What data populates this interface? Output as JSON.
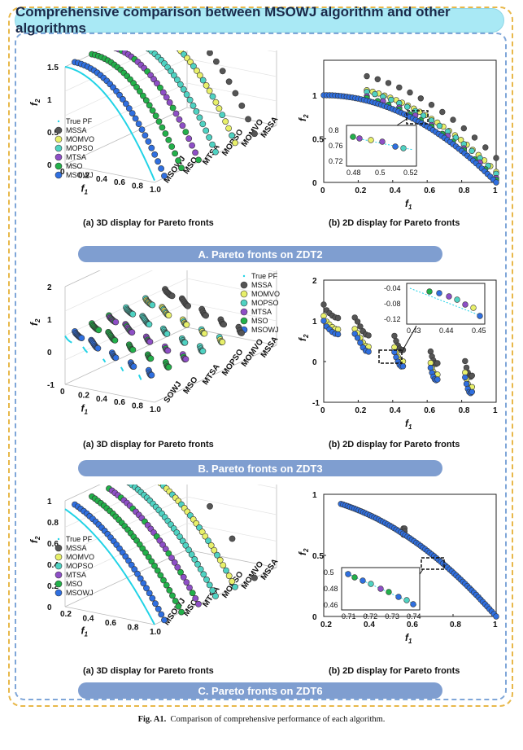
{
  "title": "Comprehensive comparison between MSOWJ algorithm and other algorithms",
  "figure_caption": {
    "label": "Fig. A1.",
    "text": "Comparison of comprehensive performance of each algorithm."
  },
  "colors": {
    "True PF": "#22d3e6",
    "MSSA": "#555555",
    "MOMVO": "#e8f06a",
    "MOPSO": "#4fd2c2",
    "MTSA": "#8e4fc6",
    "MSO": "#22b04a",
    "MSOWJ": "#2f6fe0"
  },
  "legend": [
    "True PF",
    "MSSA",
    "MOMVO",
    "MOPSO",
    "MTSA",
    "MSO",
    "MSOWJ"
  ],
  "rows": [
    {
      "banner": "A. Pareto fronts on ZDT2",
      "caption_3d": "(a) 3D display for Pareto fronts",
      "caption_2d": "(b) 2D display for Pareto fronts",
      "chart_data": [
        {
          "type": "scatter",
          "title": "(a) 3D display for Pareto fronts",
          "xlabel": "f1",
          "ylabel": "f2",
          "problem": "ZDT2",
          "y_ticks": [
            "0",
            "0.5",
            "1",
            "1.5"
          ],
          "x_ticks": [
            "0",
            "0.2",
            "0.4",
            "0.6",
            "0.8",
            "1.0"
          ],
          "depth_labels": [
            "MSOWJ",
            "MSO",
            "MTSA",
            "MOPSO",
            "MOMVO",
            "MSSA"
          ]
        },
        {
          "type": "scatter",
          "title": "(b) 2D display for Pareto fronts",
          "xlabel": "f1",
          "ylabel": "f2",
          "xlim": [
            0,
            1
          ],
          "ylim": [
            0,
            1.4
          ],
          "x_ticks": [
            "0",
            "0.2",
            "0.4",
            "0.6",
            "0.8",
            "1"
          ],
          "y_ticks": [
            "0",
            "0.5",
            "1"
          ],
          "inset": {
            "x_ticks": [
              "0.48",
              "0.5",
              "0.52"
            ],
            "y_ticks": [
              "0.72",
              "0.76",
              "0.8"
            ]
          }
        }
      ]
    },
    {
      "banner": "B. Pareto fronts on ZDT3",
      "caption_3d": "(a) 3D display for Pareto fronts",
      "caption_2d": "(b) 2D display for Pareto fronts",
      "chart_data": [
        {
          "type": "scatter",
          "title": "(a) 3D display for Pareto fronts",
          "xlabel": "f1",
          "ylabel": "f2",
          "problem": "ZDT3",
          "y_ticks": [
            "-1",
            "0",
            "1",
            "2"
          ],
          "x_ticks": [
            "0",
            "0.2",
            "0.4",
            "0.6",
            "0.8",
            "1.0"
          ],
          "depth_labels": [
            "SOWJ",
            "MSO",
            "MTSA",
            "MOPSO",
            "MOMVO",
            "MSSA"
          ]
        },
        {
          "type": "scatter",
          "title": "(b) 2D display for Pareto fronts",
          "xlabel": "f1",
          "ylabel": "f2",
          "xlim": [
            0,
            1
          ],
          "ylim": [
            -1,
            2
          ],
          "x_ticks": [
            "0",
            "0.2",
            "0.4",
            "0.6",
            "0.8",
            "1"
          ],
          "y_ticks": [
            "-1",
            "0",
            "1",
            "2"
          ],
          "inset": {
            "x_ticks": [
              "0.43",
              "0.44",
              "0.45"
            ],
            "y_ticks": [
              "-0.12",
              "-0.08",
              "-0.04"
            ]
          }
        }
      ]
    },
    {
      "banner": "C. Pareto fronts on ZDT6",
      "caption_3d": "(a) 3D display for Pareto fronts",
      "caption_2d": "(b) 2D display for Pareto fronts",
      "chart_data": [
        {
          "type": "scatter",
          "title": "(a) 3D display for Pareto fronts",
          "xlabel": "f1",
          "ylabel": "f2",
          "problem": "ZDT6",
          "y_ticks": [
            "0",
            "0.2",
            "0.4",
            "0.6",
            "0.8",
            "1"
          ],
          "x_ticks": [
            "0.2",
            "0.4",
            "0.6",
            "0.8",
            "1.0"
          ],
          "depth_labels": [
            "MSOWJ",
            "MSO",
            "MTSA",
            "MOPSO",
            "MOMVO",
            "MSSA"
          ]
        },
        {
          "type": "scatter",
          "title": "(b) 2D display for Pareto fronts",
          "xlabel": "f1",
          "ylabel": "f2",
          "xlim": [
            0.2,
            1
          ],
          "ylim": [
            0,
            1
          ],
          "x_ticks": [
            "0.2",
            "0.4",
            "0.6",
            "0.8",
            "1"
          ],
          "y_ticks": [
            "0",
            "0.5",
            "1"
          ],
          "inset": {
            "x_ticks": [
              "0.71",
              "0.72",
              "0.73",
              "0.74"
            ],
            "y_ticks": [
              "0.46",
              "0.48",
              "0.5"
            ]
          }
        }
      ]
    }
  ]
}
